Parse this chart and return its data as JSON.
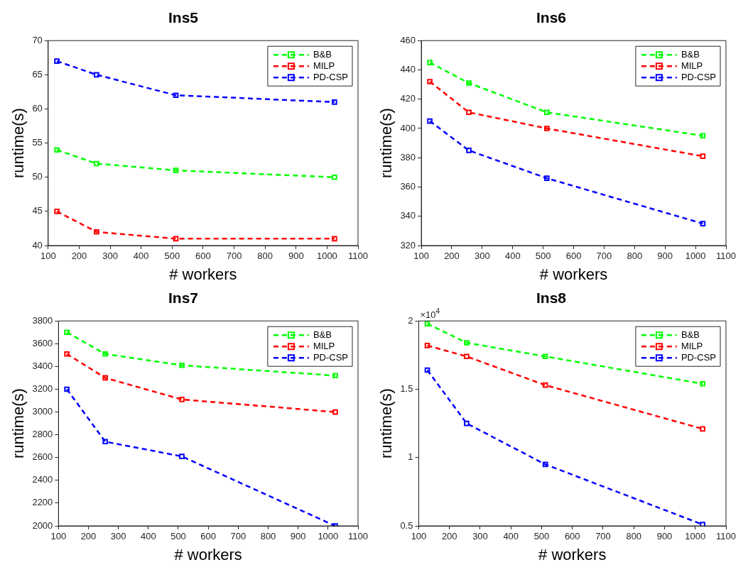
{
  "chart_data": [
    {
      "type": "line",
      "title": "Ins5",
      "xlabel": "# workers",
      "ylabel": "runtime(s)",
      "x": [
        128,
        256,
        512,
        1024
      ],
      "xlim": [
        100,
        1100
      ],
      "xticks": [
        100,
        200,
        300,
        400,
        500,
        600,
        700,
        800,
        900,
        1000,
        1100
      ],
      "ylim": [
        40,
        70
      ],
      "yticks": [
        40,
        45,
        50,
        55,
        60,
        65,
        70
      ],
      "legend": "top right",
      "marker": "square",
      "line_style": "dashed",
      "series": [
        {
          "name": "B&B",
          "color": "#00ff00",
          "values": [
            54,
            52,
            51,
            50
          ]
        },
        {
          "name": "MILP",
          "color": "#ff0000",
          "values": [
            45,
            42,
            41,
            41
          ]
        },
        {
          "name": "PD-CSP",
          "color": "#0000ff",
          "values": [
            67,
            65,
            62,
            61
          ]
        }
      ]
    },
    {
      "type": "line",
      "title": "Ins6",
      "xlabel": "# workers",
      "ylabel": "runtime(s)",
      "x": [
        128,
        256,
        512,
        1024
      ],
      "xlim": [
        100,
        1100
      ],
      "xticks": [
        100,
        200,
        300,
        400,
        500,
        600,
        700,
        800,
        900,
        1000,
        1100
      ],
      "ylim": [
        320,
        460
      ],
      "yticks": [
        320,
        340,
        360,
        380,
        400,
        420,
        440,
        460
      ],
      "legend": "top right",
      "marker": "square",
      "line_style": "dashed",
      "series": [
        {
          "name": "B&B",
          "color": "#00ff00",
          "values": [
            445,
            431,
            411,
            395
          ]
        },
        {
          "name": "MILP",
          "color": "#ff0000",
          "values": [
            432,
            411,
            400,
            381
          ]
        },
        {
          "name": "PD-CSP",
          "color": "#0000ff",
          "values": [
            405,
            385,
            366,
            335
          ]
        }
      ]
    },
    {
      "type": "line",
      "title": "Ins7",
      "xlabel": "# workers",
      "ylabel": "runtime(s)",
      "x": [
        128,
        256,
        512,
        1024
      ],
      "xlim": [
        100,
        1100
      ],
      "xticks": [
        100,
        200,
        300,
        400,
        500,
        600,
        700,
        800,
        900,
        1000,
        1100
      ],
      "ylim": [
        2000,
        3800
      ],
      "yticks": [
        2000,
        2200,
        2400,
        2600,
        2800,
        3000,
        3200,
        3400,
        3600,
        3800
      ],
      "legend": "top right",
      "marker": "square",
      "line_style": "dashed",
      "series": [
        {
          "name": "B&B",
          "color": "#00ff00",
          "values": [
            3700,
            3510,
            3410,
            3320
          ]
        },
        {
          "name": "MILP",
          "color": "#ff0000",
          "values": [
            3510,
            3300,
            3110,
            3000
          ]
        },
        {
          "name": "PD-CSP",
          "color": "#0000ff",
          "values": [
            3200,
            2740,
            2610,
            2000
          ]
        }
      ]
    },
    {
      "type": "line",
      "title": "Ins8",
      "xlabel": "# workers",
      "ylabel": "runtime(s)",
      "x": [
        128,
        256,
        512,
        1024
      ],
      "xlim": [
        100,
        1100
      ],
      "xticks": [
        100,
        200,
        300,
        400,
        500,
        600,
        700,
        800,
        900,
        1000,
        1100
      ],
      "ylim": [
        0.5,
        2
      ],
      "yticks": [
        0.5,
        1,
        1.5,
        2
      ],
      "legend": "top right",
      "marker": "square",
      "line_style": "dashed",
      "annotations": [
        "×10$^{4}$"
      ],
      "series": [
        {
          "name": "B&B",
          "color": "#00ff00",
          "values": [
            1.98,
            1.84,
            1.74,
            1.54
          ]
        },
        {
          "name": "MILP",
          "color": "#ff0000",
          "values": [
            1.82,
            1.74,
            1.53,
            1.21
          ]
        },
        {
          "name": "PD-CSP",
          "color": "#0000ff",
          "values": [
            1.64,
            1.25,
            0.95,
            0.51
          ]
        }
      ]
    }
  ]
}
